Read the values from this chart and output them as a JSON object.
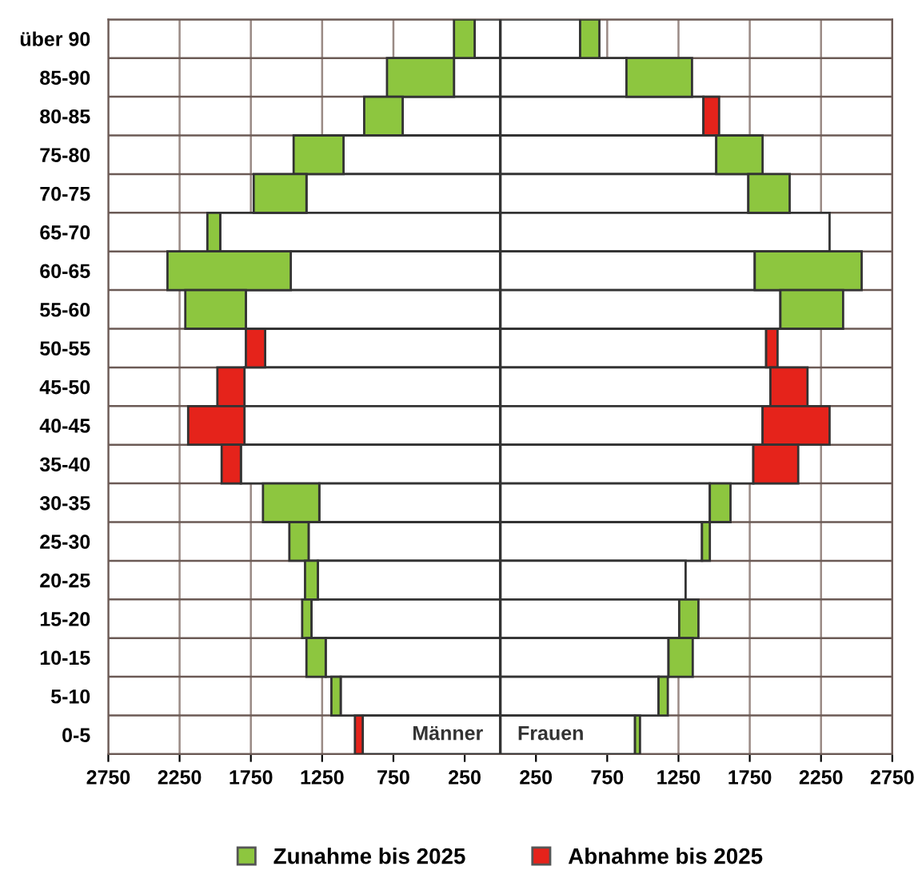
{
  "chart_data": {
    "type": "bar",
    "orientation": "horizontal",
    "stacked": true,
    "categories": [
      "über 90",
      "85-90",
      "80-85",
      "75-80",
      "70-75",
      "65-70",
      "60-65",
      "55-60",
      "50-55",
      "45-50",
      "40-45",
      "35-40",
      "30-35",
      "25-30",
      "20-25",
      "15-20",
      "10-15",
      "5-10",
      "0-5"
    ],
    "series": [
      {
        "color": "#ffffff",
        "values": [
          -180,
          -325,
          -685,
          -1100,
          -1360,
          -1965,
          -1470,
          -1785,
          -1650,
          -1795,
          -1795,
          -1820,
          -1270,
          -1345,
          -1280,
          -1325,
          -1225,
          -1120,
          -965
        ]
      },
      {
        "name": "Zunahme bis 2025",
        "color": "#8dc63f",
        "values": [
          -145,
          -470,
          -270,
          -350,
          -370,
          -90,
          -865,
          -425,
          null,
          null,
          null,
          null,
          -395,
          -135,
          -90,
          -65,
          -135,
          -65,
          null
        ]
      },
      {
        "name": "Abnahme bis 2025",
        "color": "#e5231b",
        "values": [
          null,
          null,
          null,
          null,
          null,
          null,
          null,
          null,
          -135,
          -190,
          -395,
          -135,
          null,
          null,
          null,
          null,
          null,
          null,
          -55
        ]
      },
      {
        "color": "#ffffff",
        "values": [
          560,
          885,
          1425,
          1515,
          1740,
          2310,
          1785,
          1965,
          1865,
          1895,
          1840,
          1775,
          1470,
          1415,
          1300,
          1255,
          1180,
          1110,
          945
        ]
      },
      {
        "color": "#8dc63f",
        "values": [
          135,
          460,
          null,
          325,
          290,
          null,
          750,
          440,
          null,
          null,
          null,
          null,
          145,
          55,
          null,
          135,
          170,
          65,
          35
        ]
      },
      {
        "color": "#e5231b",
        "values": [
          null,
          null,
          110,
          null,
          null,
          null,
          null,
          null,
          80,
          260,
          470,
          315,
          null,
          null,
          null,
          null,
          null,
          null,
          null
        ]
      }
    ],
    "xlim": [
      -2750,
      2750
    ],
    "xticks": [
      {
        "value": -2750,
        "label": "2750"
      },
      {
        "value": -2250,
        "label": "2250"
      },
      {
        "value": -1750,
        "label": "1750"
      },
      {
        "value": -1250,
        "label": "1250"
      },
      {
        "value": -750,
        "label": "750"
      },
      {
        "value": -250,
        "label": "250"
      },
      250,
      750,
      1250,
      1750,
      2250,
      2750
    ],
    "ref_lines": [
      {
        "axis": "x",
        "value": 0,
        "color": "#333333"
      }
    ],
    "annotations": [
      "Männer",
      "Frauen"
    ],
    "grid": true,
    "legend": "bottom"
  }
}
